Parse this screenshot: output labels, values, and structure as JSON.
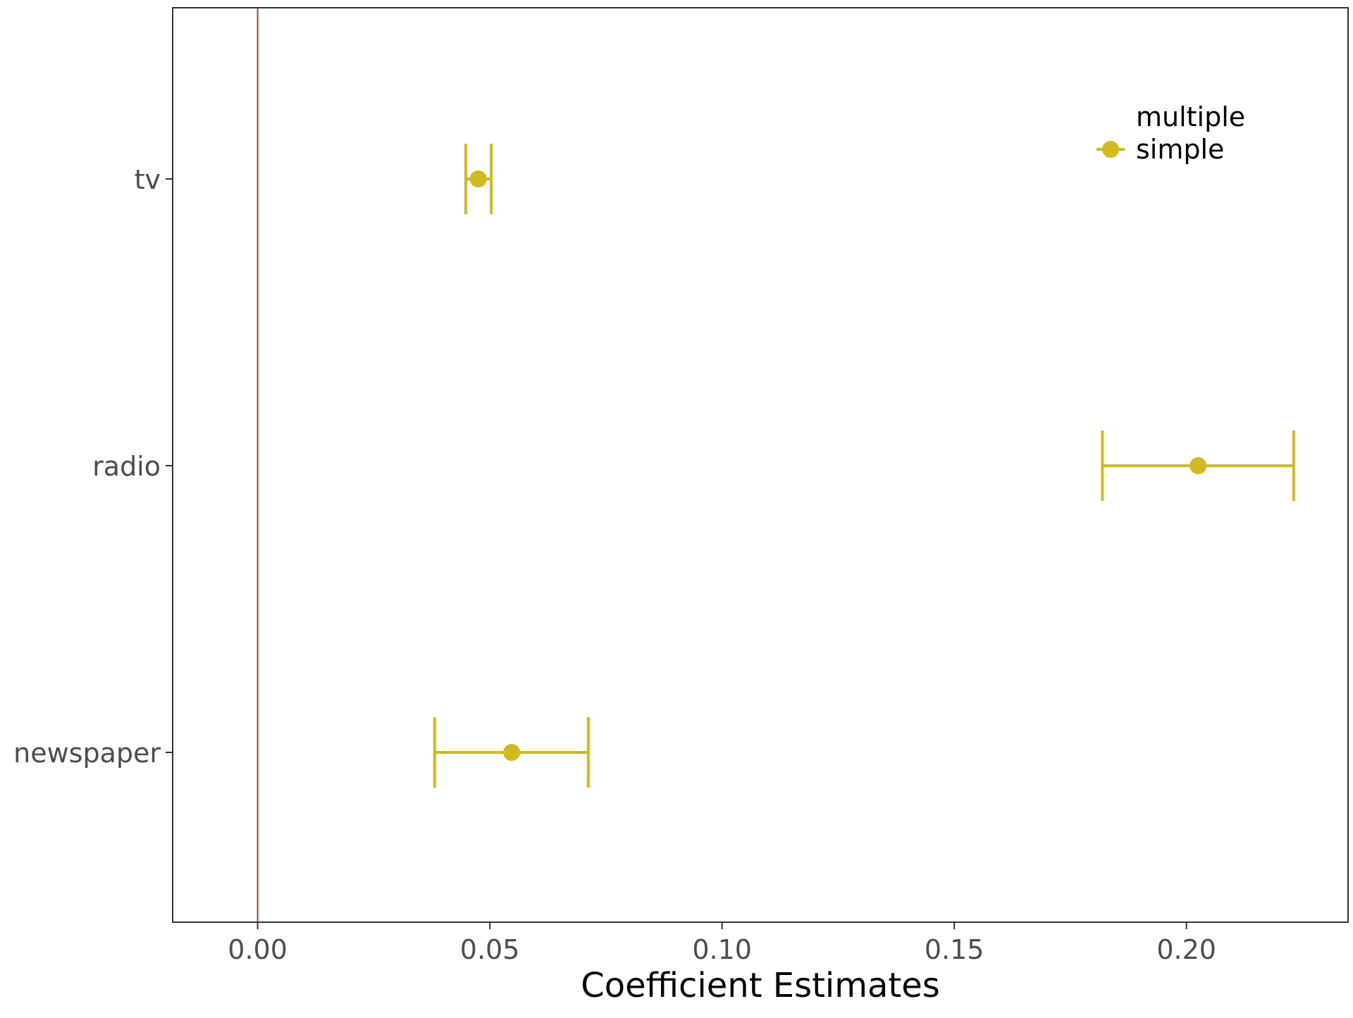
{
  "chart_data": {
    "type": "scatter",
    "subtype": "coefficient-plot",
    "title": "",
    "xlabel": "Coefficient Estimates",
    "ylabel": "",
    "xlim": [
      -0.0183,
      0.2348
    ],
    "x_ticks": [
      0.0,
      0.05,
      0.1,
      0.15,
      0.2
    ],
    "x_tick_labels": [
      "0.00",
      "0.05",
      "0.10",
      "0.15",
      "0.20"
    ],
    "categories": [
      "tv",
      "radio",
      "newspaper"
    ],
    "reference_line": {
      "x": 0,
      "color": "#a0402a"
    },
    "grid": false,
    "legend": {
      "placement": "top-right",
      "entries": [
        "multiple",
        "simple"
      ]
    },
    "series": [
      {
        "name": "multiple",
        "color": "#ffffff",
        "points": []
      },
      {
        "name": "simple",
        "color": "#d4b91a",
        "points": [
          {
            "category": "tv",
            "estimate": 0.0475,
            "lower": 0.0448,
            "upper": 0.0503
          },
          {
            "category": "radio",
            "estimate": 0.2025,
            "lower": 0.1819,
            "upper": 0.2231
          },
          {
            "category": "newspaper",
            "estimate": 0.0547,
            "lower": 0.0381,
            "upper": 0.0712
          }
        ]
      }
    ]
  }
}
